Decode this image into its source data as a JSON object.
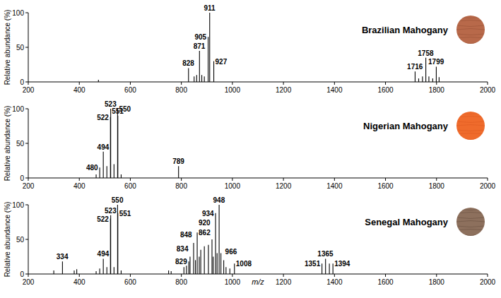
{
  "chart_data": [
    {
      "type": "bar",
      "title": "Brazilian Mahogany",
      "y_label": "Relative abundance (%)",
      "x": [
        475,
        828,
        850,
        860,
        871,
        880,
        890,
        905,
        911,
        927,
        1716,
        1730,
        1745,
        1758,
        1770,
        1785,
        1799,
        1810
      ],
      "values": [
        3,
        20,
        8,
        10,
        45,
        10,
        8,
        65,
        100,
        30,
        15,
        5,
        8,
        35,
        8,
        5,
        22,
        7
      ],
      "peak_labels": [
        null,
        "828",
        null,
        null,
        "871",
        null,
        null,
        "905",
        "911",
        "927",
        "1716",
        null,
        null,
        "1758",
        null,
        null,
        "1799",
        null
      ],
      "color": "#000000",
      "xlim": [
        200,
        2000
      ],
      "xticks": [
        200,
        400,
        600,
        800,
        1000,
        1200,
        1400,
        1600,
        1800,
        2000
      ],
      "ylim": [
        0,
        100
      ],
      "yticks": [
        0,
        50,
        100
      ],
      "grid": false
    },
    {
      "type": "bar",
      "title": "Nigerian Mahogany",
      "y_label": "Relative abundance (%)",
      "x": [
        466,
        480,
        494,
        508,
        522,
        523,
        536,
        550,
        551,
        564,
        789
      ],
      "values": [
        5,
        15,
        38,
        17,
        88,
        100,
        20,
        100,
        90,
        5,
        17
      ],
      "peak_labels": [
        null,
        "480",
        "494",
        null,
        "522",
        "523",
        null,
        "550",
        "551",
        null,
        "789"
      ],
      "color": "#000000",
      "xlim": [
        200,
        2000
      ],
      "xticks": [
        200,
        400,
        600,
        800,
        1000,
        1200,
        1400,
        1600,
        1800,
        2000
      ],
      "ylim": [
        0,
        100
      ],
      "yticks": [
        0,
        50,
        100
      ],
      "grid": false
    },
    {
      "type": "bar",
      "title": "Senegal Mahogany",
      "y_label": "Relative abundance (%)",
      "x_label": "m/z",
      "x": [
        300,
        334,
        380,
        390,
        466,
        480,
        494,
        508,
        522,
        523,
        536,
        550,
        551,
        564,
        750,
        760,
        810,
        820,
        829,
        834,
        848,
        855,
        862,
        870,
        876,
        890,
        906,
        920,
        925,
        934,
        940,
        948,
        955,
        966,
        975,
        990,
        1008,
        1351,
        1365,
        1380,
        1394
      ],
      "values": [
        5,
        18,
        5,
        7,
        4,
        8,
        22,
        10,
        80,
        85,
        10,
        100,
        88,
        5,
        5,
        4,
        10,
        12,
        18,
        25,
        45,
        20,
        60,
        25,
        35,
        40,
        42,
        50,
        25,
        88,
        30,
        100,
        30,
        20,
        10,
        8,
        15,
        15,
        22,
        15,
        15
      ],
      "peak_labels": [
        null,
        "334",
        null,
        null,
        null,
        null,
        "494",
        null,
        "522",
        "523",
        null,
        "550",
        "551",
        null,
        null,
        null,
        null,
        null,
        "829",
        "834",
        "848",
        null,
        "862",
        null,
        null,
        null,
        null,
        "920",
        null,
        "934",
        null,
        "948",
        null,
        "966",
        null,
        null,
        "1008",
        "1351",
        "1365",
        null,
        "1394"
      ],
      "color": "#000000",
      "xlim": [
        200,
        2000
      ],
      "xticks": [
        200,
        400,
        600,
        800,
        1000,
        1200,
        1400,
        1600,
        1800,
        2000
      ],
      "ylim": [
        0,
        100
      ],
      "yticks": [
        0,
        50,
        100
      ],
      "grid": false
    }
  ]
}
